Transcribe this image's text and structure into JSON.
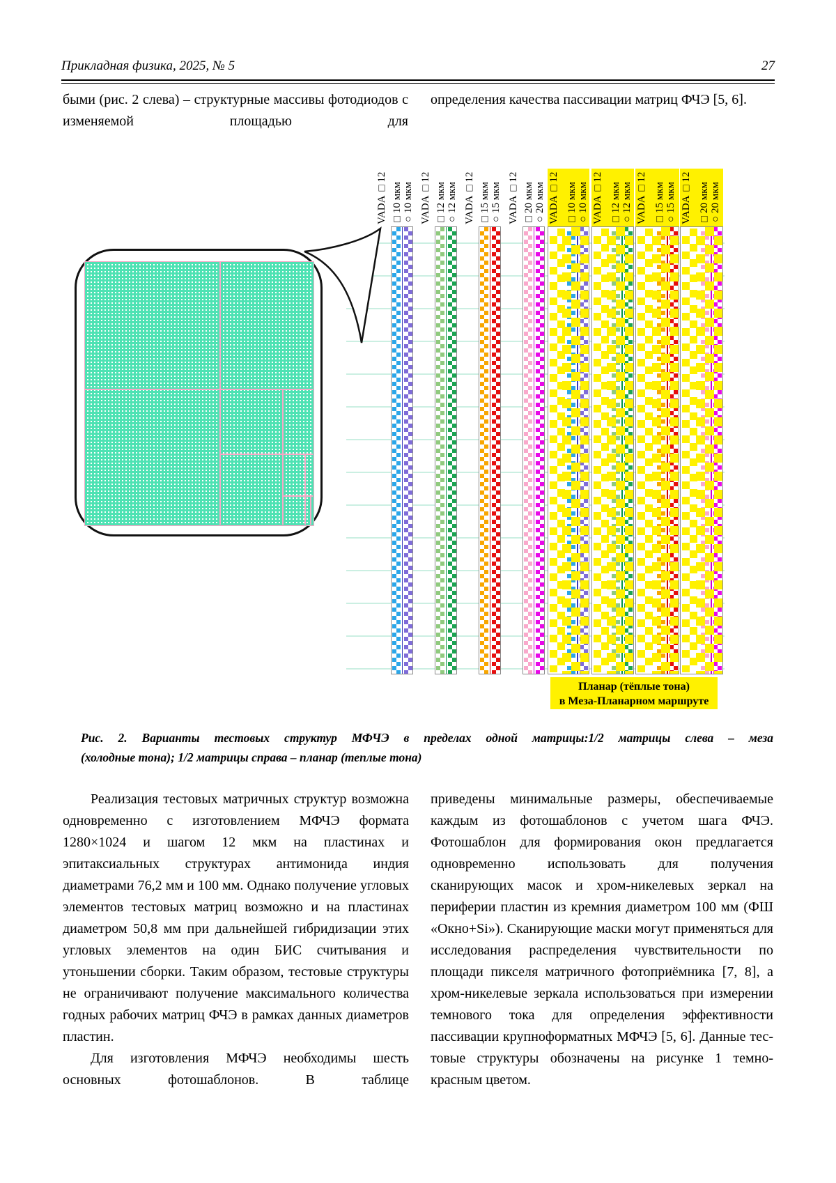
{
  "header": {
    "journal": "Прикладная физика, 2025, № 5",
    "page_number": "27"
  },
  "intro": {
    "left": "быми (рис. 2 слева) – структурные массивы фотодиодов с изменяемой площадью для",
    "right": "определения качества пассивации матриц ФЧЭ [5, 6]."
  },
  "figure": {
    "colors": {
      "yellow": "#FFF100",
      "gridline": "#CBEFE2",
      "pixel_teal": "#4EE2B3",
      "subdivision_pink": "#F6A8C6"
    },
    "pairs": [
      {
        "size": "10 мкм",
        "a": "#2BA6E8",
        "b": "#7F6CD9",
        "stripe": "#3B3BB8"
      },
      {
        "size": "12 мкм",
        "a": "#90CA7E",
        "b": "#1CA452",
        "stripe": "#009448"
      },
      {
        "size": "15 мкм",
        "a": "#F8A600",
        "b": "#E60D0D",
        "stripe": "#D40000"
      },
      {
        "size": "20 мкм",
        "a": "#F9A9CB",
        "b": "#E808E8",
        "stripe": "#CC00CC"
      }
    ],
    "cold_groups": [
      {
        "labels": [
          "VADA □12",
          "□10 мкм",
          "○10 мкм"
        ]
      },
      {
        "labels": [
          "VADA □12",
          "□12 мкм",
          "○12 мкм"
        ]
      },
      {
        "labels": [
          "VADA □12",
          "□15 мкм",
          "○15 мкм"
        ]
      },
      {
        "labels": [
          "VADA □12",
          "□20 мкм",
          "○20 мкм"
        ]
      }
    ],
    "warm_groups": [
      {
        "labels": [
          "VADA □12",
          "□10 мкм",
          "○10 мкм"
        ]
      },
      {
        "labels": [
          "VADA □12",
          "□12 мкм",
          "○12 мкм"
        ]
      },
      {
        "labels": [
          "VADA □12",
          "□15 мкм",
          "○15 мкм"
        ]
      },
      {
        "labels": [
          "VADA □12",
          "□20 мкм",
          "○20 мкм"
        ]
      }
    ],
    "warm_box": {
      "line1": "Планар (тёплые тона)",
      "line2": "в Меза-Планарном маршруте"
    }
  },
  "caption": {
    "line1": "Рис. 2. Варианты тестовых структур МФЧЭ в пределах одной матрицы:1/2 матрицы слева – меза",
    "line2": "(холодные тона); 1/2 матрицы справа – планар (теплые тона)"
  },
  "body": {
    "left_p1": "Реализация тестовых матричных струк­тур возможна одновременно с изготовлением МФЧЭ формата 1280×1024 и шагом 12 мкм на пластинах и эпитаксиальных структурах ан­тимонида индия диаметрами 76,2 мм и 100 мм. Однако получение угловых элементов тестовых матриц возможно и на пластинах диаметром 50,8 мм при дальнейшей гибриди­зации этих угловых элементов на один БИС считывания и утоньшении сборки. Таким об­разом, тестовые структуры не ограничивают получение максимального количества годных рабочих матриц ФЧЭ в рамках данных диа­метров пластин.",
    "left_p2": "Для изготовления МФЧЭ необходимы шесть основных фотошаблонов. В таблице",
    "right_p1": "приведены минимальные размеры, обеспечи­ваемые каждым из фотошаблонов с учетом шага ФЧЭ. Фотошаблон для формирования окон предлагается одновременно использо­вать для получения сканирующих масок и хром-никелевых зеркал на периферии пластин из кремния диаметром 100 мм (ФШ «Окно+Si»). Сканирующие маски могут применяться для исследования распределения чувствительно­сти по площади пикселя матричного фотопри­ёмника [7, 8], а хром-никелевые зеркала ис­пользоваться при измерении темнового тока для определения эффективности пассивации крупноформатных МФЧЭ [5, 6]. Данные тес­товые структуры обозначены на рисунке 1 темно-красным цветом."
  }
}
